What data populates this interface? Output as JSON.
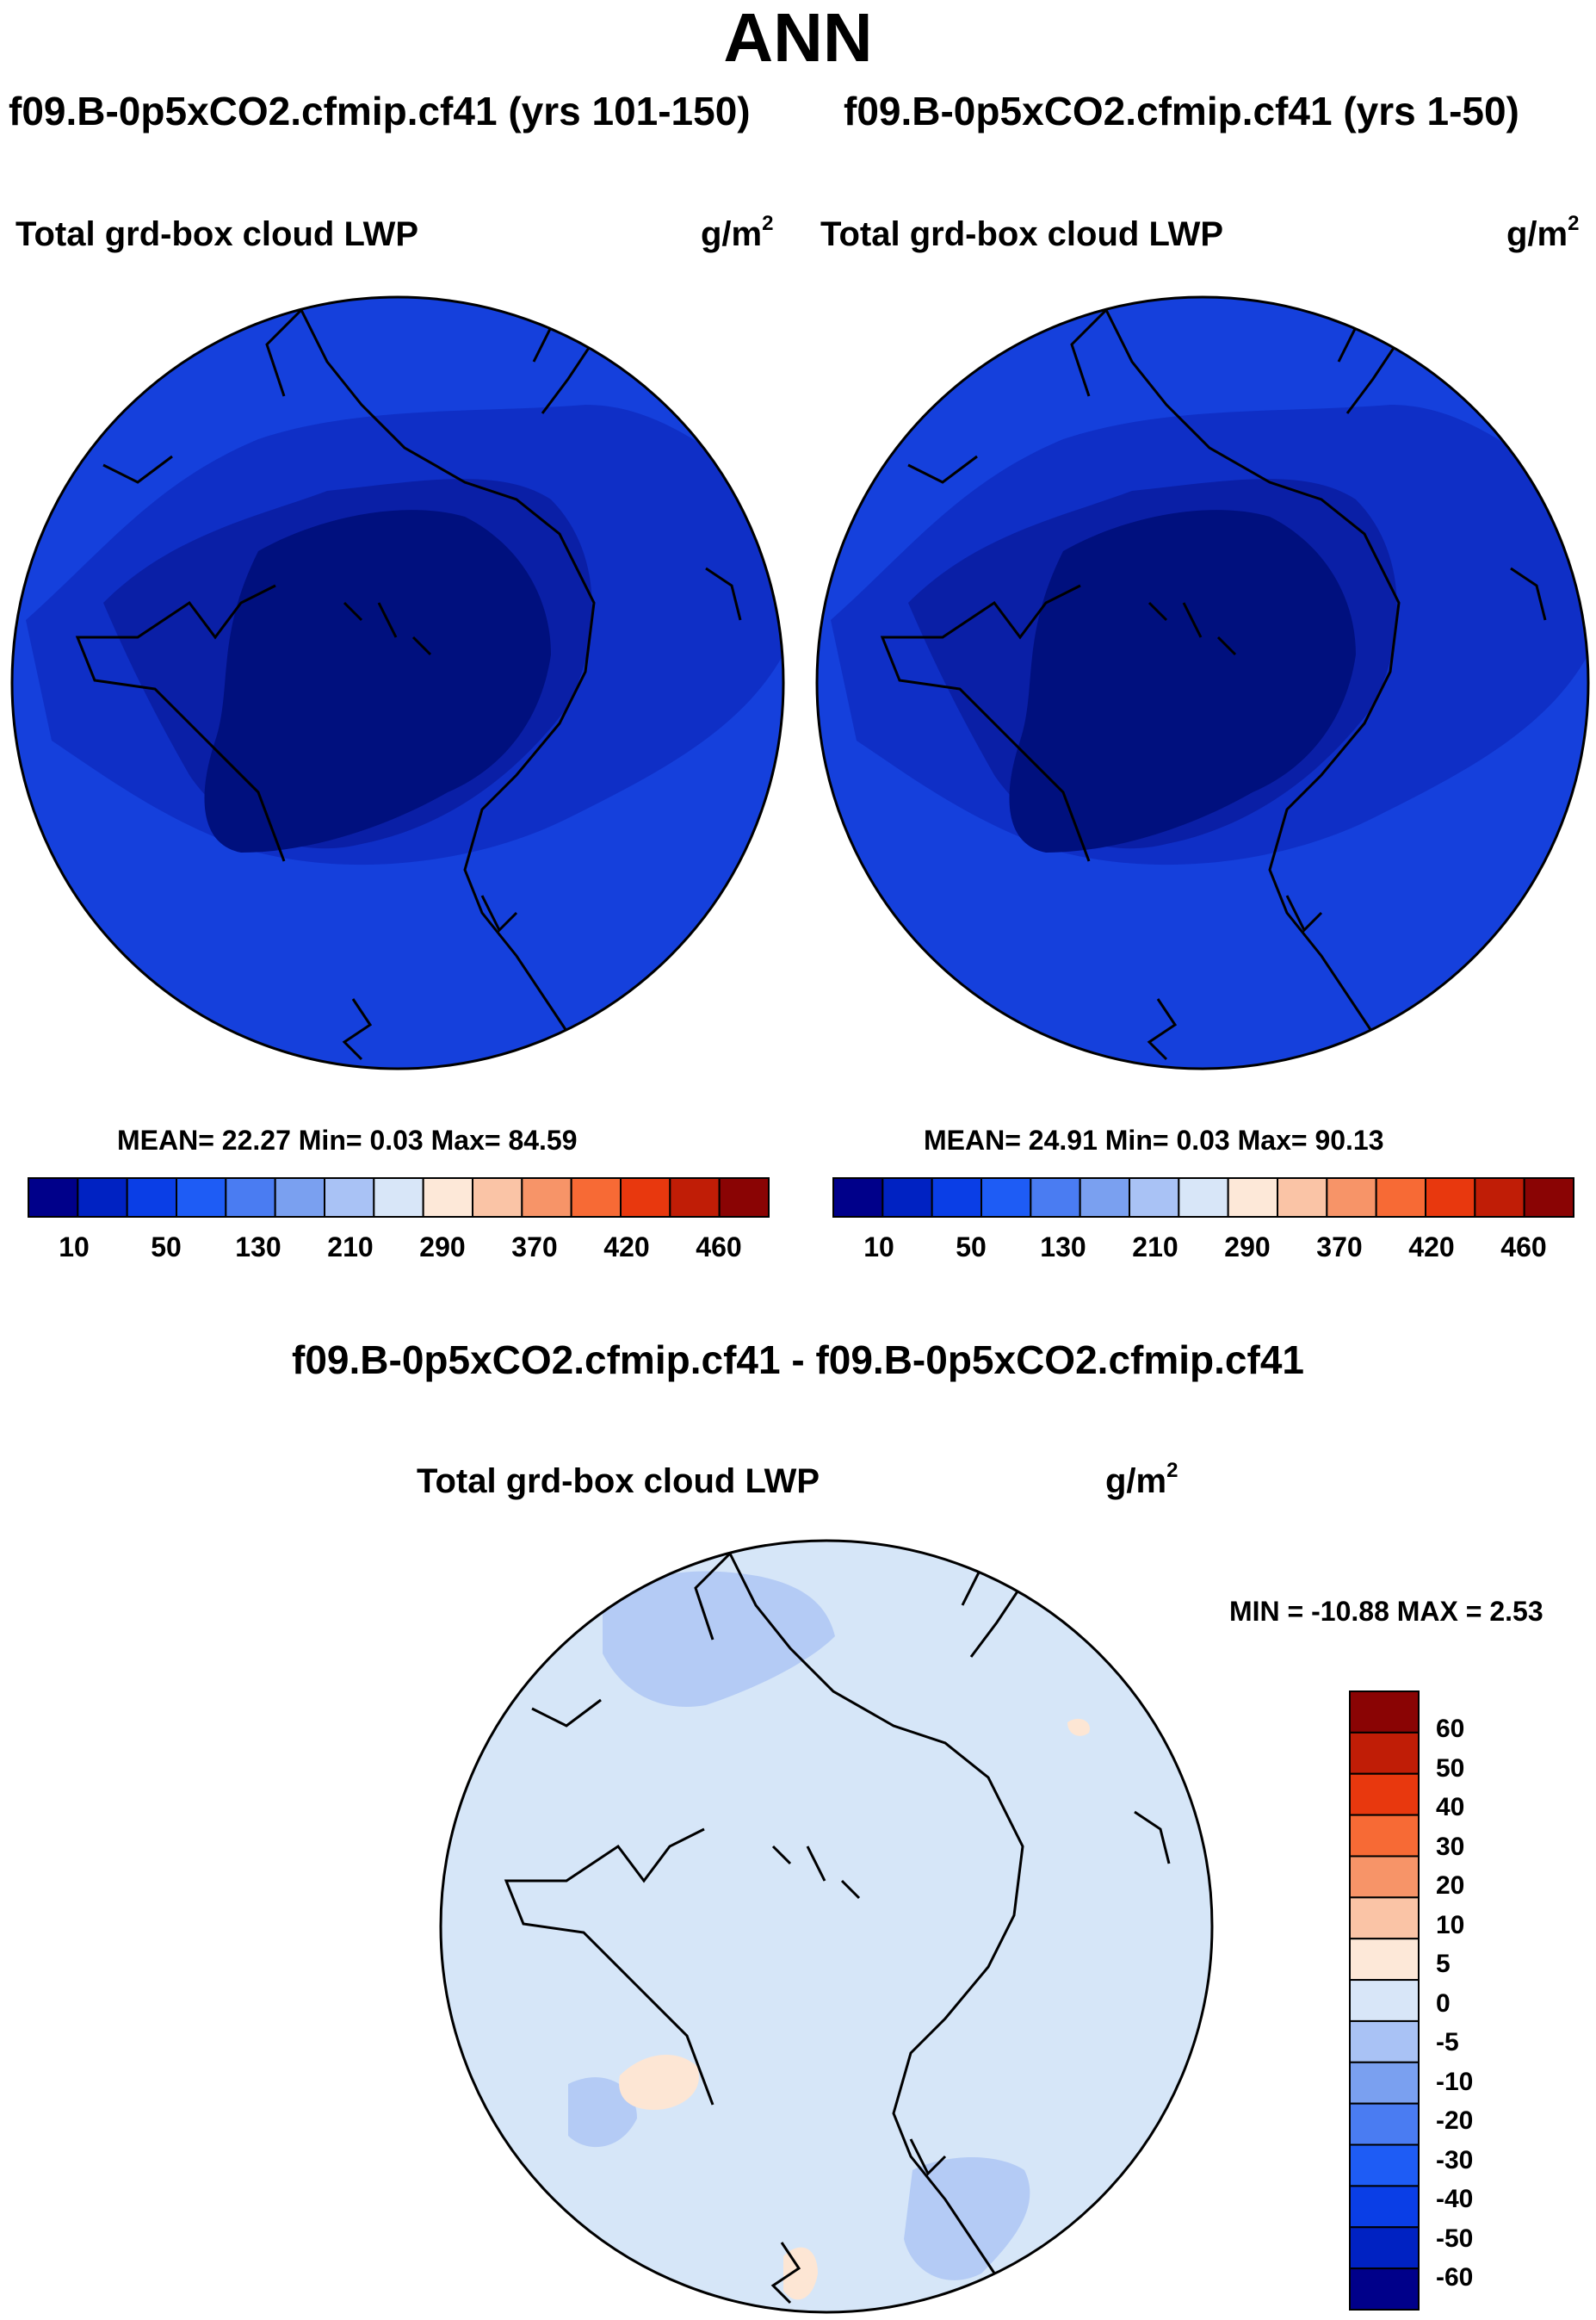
{
  "page": {
    "main_title": "ANN",
    "units_base": "g/m",
    "units_exp": "2"
  },
  "chart_data": [
    {
      "type": "heatmap",
      "projection": "north polar stereographic",
      "case_title": "f09.B-0p5xCO2.cfmip.cf41 (yrs 101-150)",
      "field": "Total grd-box cloud LWP",
      "units": "g/m2",
      "stats": {
        "mean": "22.27",
        "min": "0.03",
        "max": "84.59",
        "text": "MEAN=  22.27  Min=   0.03  Max=  84.59"
      },
      "colorbar": {
        "orientation": "horizontal",
        "tick_labels": [
          "10",
          "50",
          "130",
          "210",
          "290",
          "370",
          "420",
          "460"
        ],
        "colors": [
          "#00008a",
          "#0022c2",
          "#0a3ee6",
          "#1e5cf5",
          "#4a7cf2",
          "#7aa0f0",
          "#a9c2f5",
          "#d8e6f8",
          "#fde8d8",
          "#fac4a6",
          "#f79468",
          "#f76a35",
          "#e8380e",
          "#c01d06",
          "#8a0404"
        ]
      },
      "map_levels": [
        "#00107e",
        "#0a1fa6",
        "#0f2fc6",
        "#1540dc"
      ]
    },
    {
      "type": "heatmap",
      "projection": "north polar stereographic",
      "case_title": "f09.B-0p5xCO2.cfmip.cf41 (yrs 1-50)",
      "field": "Total grd-box cloud LWP",
      "units": "g/m2",
      "stats": {
        "mean": "24.91",
        "min": "0.03",
        "max": "90.13",
        "text": "MEAN=  24.91  Min=   0.03  Max=  90.13"
      },
      "colorbar": {
        "orientation": "horizontal",
        "tick_labels": [
          "10",
          "50",
          "130",
          "210",
          "290",
          "370",
          "420",
          "460"
        ],
        "colors": [
          "#00008a",
          "#0022c2",
          "#0a3ee6",
          "#1e5cf5",
          "#4a7cf2",
          "#7aa0f0",
          "#a9c2f5",
          "#d8e6f8",
          "#fde8d8",
          "#fac4a6",
          "#f79468",
          "#f76a35",
          "#e8380e",
          "#c01d06",
          "#8a0404"
        ]
      },
      "map_levels": [
        "#00107e",
        "#0a1fa6",
        "#0f2fc6",
        "#1540dc"
      ]
    },
    {
      "type": "heatmap",
      "projection": "north polar stereographic",
      "case_title": "f09.B-0p5xCO2.cfmip.cf41 - f09.B-0p5xCO2.cfmip.cf41",
      "field": "Total grd-box cloud LWP",
      "units": "g/m2",
      "stats": {
        "min": "-10.88",
        "max": "2.53",
        "text": "MIN = -10.88 MAX =   2.53"
      },
      "colorbar": {
        "orientation": "vertical",
        "tick_labels": [
          "60",
          "50",
          "40",
          "30",
          "20",
          "10",
          "5",
          "0",
          "-5",
          "-10",
          "-20",
          "-30",
          "-40",
          "-50",
          "-60"
        ],
        "colors": [
          "#8a0404",
          "#c01d06",
          "#e8380e",
          "#f76a35",
          "#f79468",
          "#fac4a6",
          "#fde8d8",
          "#d8e6f8",
          "#a9c2f5",
          "#7aa0f0",
          "#4a7cf2",
          "#1e5cf5",
          "#0a3ee6",
          "#0022c2",
          "#00008a"
        ]
      },
      "map_levels": [
        "#d6e6f8",
        "#b4cbf5",
        "#fde6d4"
      ]
    }
  ]
}
